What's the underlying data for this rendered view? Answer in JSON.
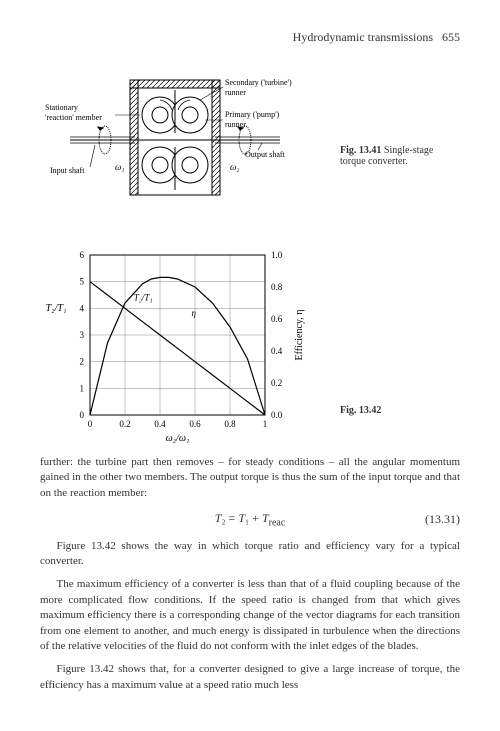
{
  "header": {
    "title": "Hydrodynamic transmissions",
    "page": "655"
  },
  "fig1": {
    "caption_label": "Fig. 13.41",
    "caption_text": "Single-stage torque converter.",
    "labels": {
      "secondary": "Secondary ('turbine') runner",
      "stationary": "Stationary 'reaction' member",
      "primary": "Primary ('pump') runner",
      "input": "Input shaft",
      "output": "Output shaft",
      "omega1": "ω₁",
      "omega2": "ω₂"
    }
  },
  "fig2": {
    "caption_label": "Fig. 13.42",
    "chart": {
      "type": "line",
      "xlim": [
        0,
        1.0
      ],
      "left_ylim": [
        0,
        6
      ],
      "right_ylim": [
        0,
        1.0
      ],
      "xticks": [
        0,
        0.2,
        0.4,
        0.6,
        0.8,
        1.0
      ],
      "left_yticks": [
        0,
        1,
        2,
        3,
        4,
        5,
        6
      ],
      "right_yticks": [
        0,
        0.2,
        0.4,
        0.6,
        0.8,
        1.0
      ],
      "xlabel": "ω₂/ω₁",
      "left_ylabel": "T₂/T₁",
      "right_ylabel": "Efficiency, η",
      "grid_color": "#888",
      "line_color": "#000",
      "background": "#fff",
      "torque_curve": [
        {
          "x": 0.0,
          "y": 5.0
        },
        {
          "x": 0.1,
          "y": 4.5
        },
        {
          "x": 0.2,
          "y": 4.0
        },
        {
          "x": 0.3,
          "y": 3.5
        },
        {
          "x": 0.4,
          "y": 3.0
        },
        {
          "x": 0.5,
          "y": 2.5
        },
        {
          "x": 0.6,
          "y": 2.0
        },
        {
          "x": 0.7,
          "y": 1.5
        },
        {
          "x": 0.8,
          "y": 1.0
        },
        {
          "x": 0.9,
          "y": 0.5
        },
        {
          "x": 1.0,
          "y": 0.0
        }
      ],
      "efficiency_curve": [
        {
          "x": 0.0,
          "y": 0.0
        },
        {
          "x": 0.1,
          "y": 0.45
        },
        {
          "x": 0.2,
          "y": 0.7
        },
        {
          "x": 0.3,
          "y": 0.82
        },
        {
          "x": 0.35,
          "y": 0.85
        },
        {
          "x": 0.4,
          "y": 0.86
        },
        {
          "x": 0.45,
          "y": 0.86
        },
        {
          "x": 0.5,
          "y": 0.85
        },
        {
          "x": 0.6,
          "y": 0.8
        },
        {
          "x": 0.7,
          "y": 0.7
        },
        {
          "x": 0.8,
          "y": 0.55
        },
        {
          "x": 0.9,
          "y": 0.35
        },
        {
          "x": 1.0,
          "y": 0.0
        }
      ],
      "series_labels": {
        "torque": "T₂/T₁",
        "eff": "η"
      }
    }
  },
  "paragraphs": {
    "p1": "further: the turbine part then removes – for steady conditions – all the angular momentum gained in the other two members. The output torque is thus the sum of the input torque and that on the reaction member:",
    "p2": "Figure 13.42 shows the way in which torque ratio and efficiency vary for a typical converter.",
    "p3": "The maximum efficiency of a converter is less than that of a fluid coupling because of the more complicated flow conditions. If the speed ratio is changed from that which gives maximum efficiency there is a corresponding change of the vector diagrams for each transition from one element to another, and much energy is dissipated in turbulence when the directions of the relative velocities of the fluid do not conform with the inlet edges of the blades.",
    "p4": "Figure 13.42 shows that, for a converter designed to give a large increase of torque, the efficiency has a maximum value at a speed ratio much less"
  },
  "equation": {
    "text": "T₂ = T₁ + T",
    "sub": "reac",
    "num": "(13.31)"
  }
}
